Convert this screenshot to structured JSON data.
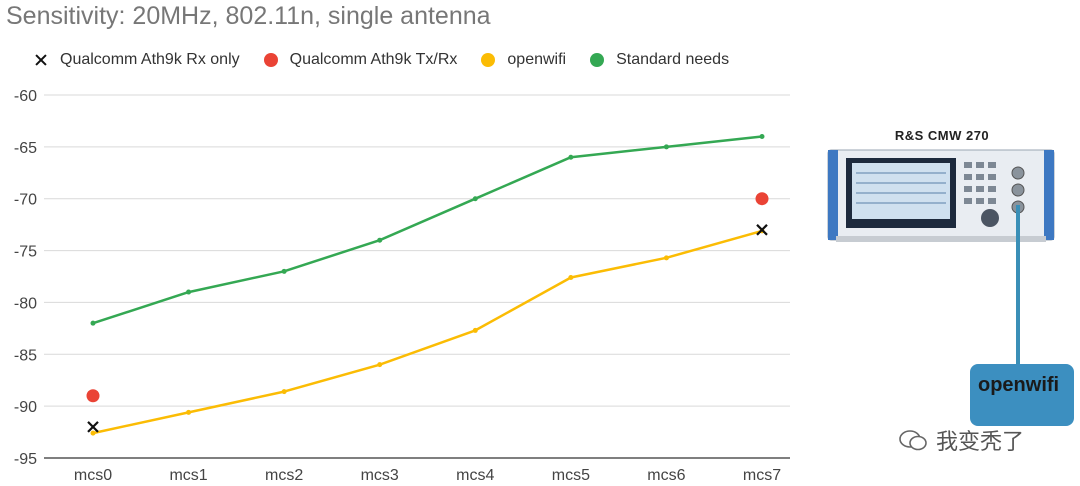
{
  "chart_data": {
    "type": "line",
    "title": "Sensitivity: 20MHz, 802.11n, single antenna",
    "categories": [
      "mcs0",
      "mcs1",
      "mcs2",
      "mcs3",
      "mcs4",
      "mcs5",
      "mcs6",
      "mcs7"
    ],
    "ylim": [
      -95,
      -60
    ],
    "yticks": [
      -60,
      -65,
      -70,
      -75,
      -80,
      -85,
      -90,
      -95
    ],
    "grid": true,
    "legend_position": "top-left",
    "series": [
      {
        "name": "Qualcomm Ath9k Rx only",
        "marker": "x",
        "color": "#111111",
        "line": false,
        "values": [
          -92,
          null,
          null,
          null,
          null,
          null,
          null,
          -73
        ]
      },
      {
        "name": "Qualcomm Ath9k Tx/Rx",
        "marker": "circle",
        "color": "#ea4335",
        "line": false,
        "values": [
          -89,
          null,
          null,
          null,
          null,
          null,
          null,
          -70
        ]
      },
      {
        "name": "openwifi",
        "marker": "dot",
        "color": "#fbbc04",
        "line": true,
        "values": [
          -92.6,
          -90.6,
          -88.6,
          -86,
          -82.7,
          -77.6,
          -75.7,
          -73.1
        ]
      },
      {
        "name": "Standard needs",
        "marker": "dot",
        "color": "#34a853",
        "line": true,
        "values": [
          -82,
          -79,
          -77,
          -74,
          -70,
          -66,
          -65,
          -64
        ]
      }
    ]
  },
  "device": {
    "label": "R&S CMW 270"
  },
  "openwifi_box": {
    "label": "openwifi"
  },
  "watermark": {
    "text": "我变秃了"
  }
}
